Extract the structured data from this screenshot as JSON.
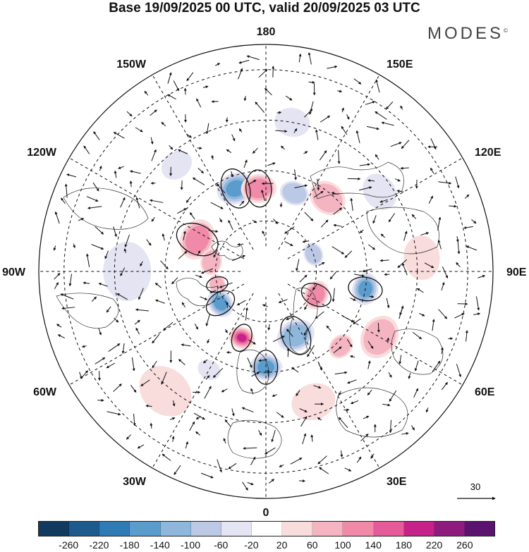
{
  "title": "Base 19/09/2025 00 UTC, valid 20/09/2025 03 UTC",
  "logo": "MODES",
  "logo_mark": "©",
  "longitude_labels": {
    "top": "180",
    "bottom": "0",
    "left": "90W",
    "right": "90E",
    "upper_left": "150W",
    "upper_right": "150E",
    "mid_upper_left": "120W",
    "mid_upper_right": "120E",
    "mid_lower_left": "60W",
    "mid_lower_right": "60E",
    "lower_left": "30W",
    "lower_right": "30E"
  },
  "vector_scale": {
    "label": "30"
  },
  "colorbar": {
    "labels": [
      "-260",
      "-220",
      "-180",
      "-140",
      "-100",
      "-60",
      "-20",
      "20",
      "60",
      "100",
      "140",
      "180",
      "220",
      "260"
    ],
    "colors": [
      "#123a5e",
      "#1d5b8f",
      "#2f7bb5",
      "#5a9ccc",
      "#8fb7dc",
      "#bcc9e6",
      "#e4e4f2",
      "#ffffff",
      "#f9dcdc",
      "#f5b4c2",
      "#f08aa8",
      "#e55a98",
      "#c5228a",
      "#8e1b7e",
      "#5a1470"
    ]
  },
  "anomalies": [
    {
      "lon": -160,
      "colat": 35,
      "r": 26,
      "value": -160
    },
    {
      "lon": -175,
      "colat": 33,
      "r": 24,
      "value": 140
    },
    {
      "lon": 160,
      "colat": 33,
      "r": 20,
      "value": -80
    },
    {
      "lon": 140,
      "colat": 38,
      "r": 26,
      "value": 70
    },
    {
      "lon": -115,
      "colat": 30,
      "r": 28,
      "value": 140
    },
    {
      "lon": -100,
      "colat": 22,
      "r": 18,
      "value": 80
    },
    {
      "lon": -75,
      "colat": 20,
      "r": 14,
      "value": 100
    },
    {
      "lon": -55,
      "colat": 22,
      "r": 20,
      "value": -150
    },
    {
      "lon": -20,
      "colat": 28,
      "r": 18,
      "value": 200
    },
    {
      "lon": 0,
      "colat": 38,
      "r": 22,
      "value": -160
    },
    {
      "lon": 25,
      "colat": 28,
      "r": 26,
      "value": -110
    },
    {
      "lon": 65,
      "colat": 22,
      "r": 20,
      "value": 120
    },
    {
      "lon": 80,
      "colat": 40,
      "r": 22,
      "value": -160
    },
    {
      "lon": 110,
      "colat": 20,
      "r": 16,
      "value": -90
    },
    {
      "lon": -40,
      "colat": 62,
      "r": 38,
      "value": 50
    },
    {
      "lon": 20,
      "colat": 55,
      "r": 30,
      "value": 50
    },
    {
      "lon": 60,
      "colat": 52,
      "r": 30,
      "value": 80
    },
    {
      "lon": -90,
      "colat": 55,
      "r": 40,
      "value": -50
    },
    {
      "lon": 95,
      "colat": 62,
      "r": 30,
      "value": 40
    },
    {
      "lon": 125,
      "colat": 55,
      "r": 26,
      "value": -60
    },
    {
      "lon": -140,
      "colat": 55,
      "r": 22,
      "value": -40
    },
    {
      "lon": 170,
      "colat": 60,
      "r": 24,
      "value": -40
    },
    {
      "lon": -30,
      "colat": 45,
      "r": 16,
      "value": -60
    },
    {
      "lon": 45,
      "colat": 42,
      "r": 18,
      "value": 90
    }
  ]
}
